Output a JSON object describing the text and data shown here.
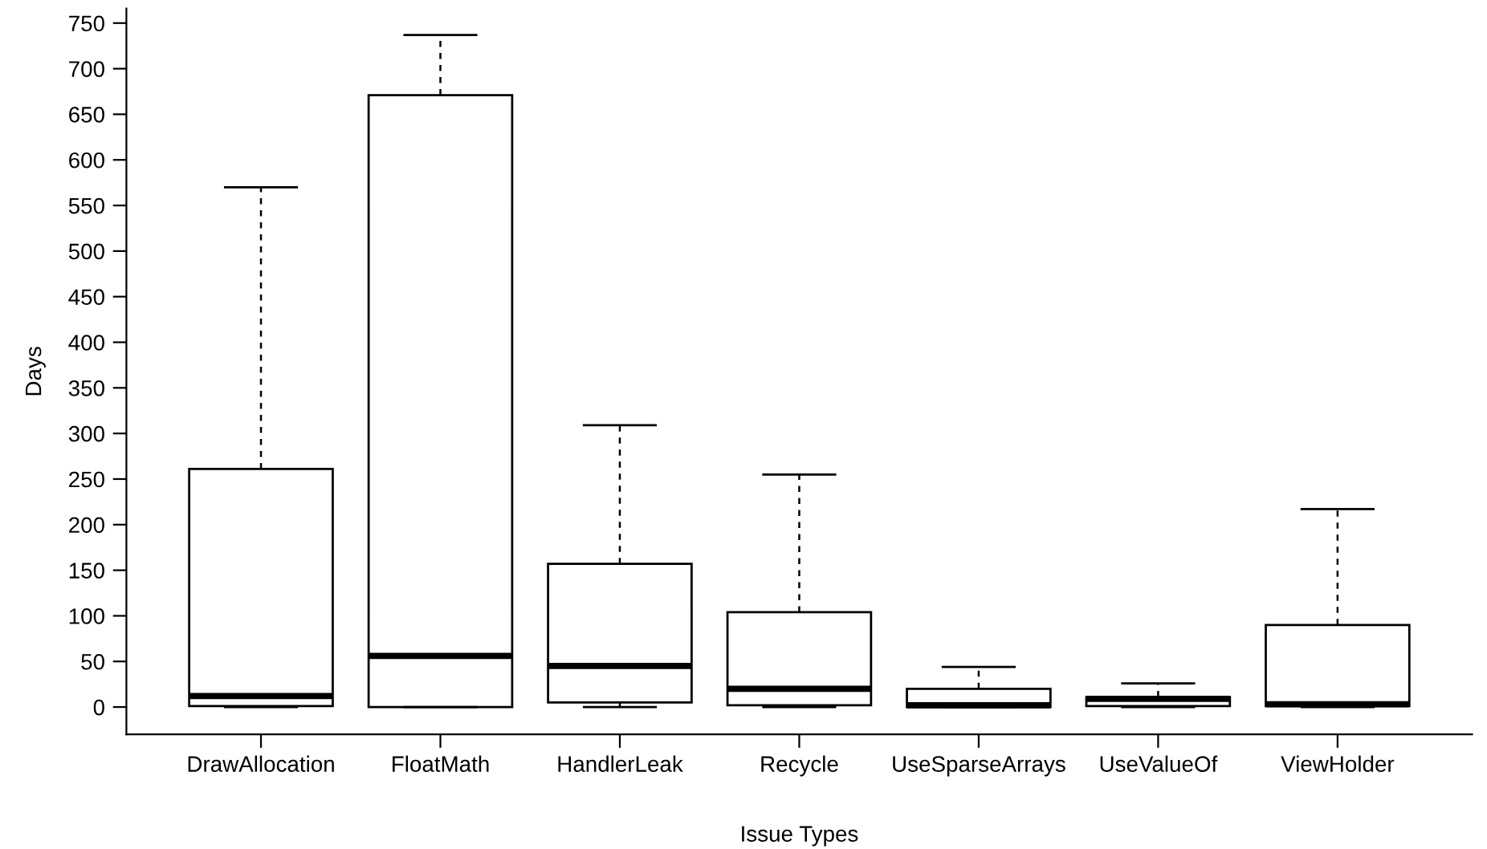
{
  "chart_data": {
    "type": "box",
    "xlabel": "Issue Types",
    "ylabel": "Days",
    "categories": [
      "DrawAllocation",
      "FloatMath",
      "HandlerLeak",
      "Recycle",
      "UseSparseArrays",
      "UseValueOf",
      "ViewHolder"
    ],
    "boxes": [
      {
        "low": 0,
        "q1": 1,
        "median": 12,
        "q3": 261,
        "high": 570
      },
      {
        "low": 0,
        "q1": 0,
        "median": 56,
        "q3": 671,
        "high": 737
      },
      {
        "low": 0,
        "q1": 5,
        "median": 45,
        "q3": 157,
        "high": 309
      },
      {
        "low": 0,
        "q1": 2,
        "median": 20,
        "q3": 104,
        "high": 255
      },
      {
        "low": 0,
        "q1": 0,
        "median": 2,
        "q3": 20,
        "high": 44
      },
      {
        "low": 0,
        "q1": 1,
        "median": 9,
        "q3": 11,
        "high": 26
      },
      {
        "low": 0,
        "q1": 1,
        "median": 3,
        "q3": 90,
        "high": 217
      }
    ],
    "color": "#ffffff",
    "ylim": [
      -30,
      766
    ],
    "yticks": [
      0,
      50,
      100,
      150,
      200,
      250,
      300,
      350,
      400,
      450,
      500,
      550,
      600,
      650,
      700,
      750
    ],
    "grid": false,
    "legend": false
  }
}
